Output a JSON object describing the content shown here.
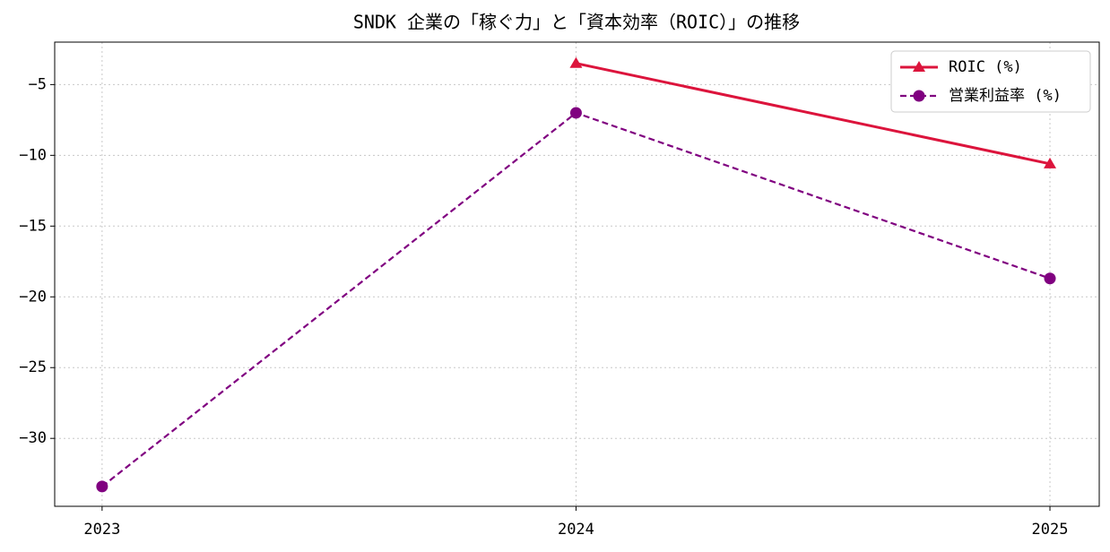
{
  "chart_data": {
    "type": "line",
    "title": "SNDK 企業の「稼ぐ力」と「資本効率（ROIC）」の推移",
    "x": [
      2023,
      2024,
      2025
    ],
    "series": [
      {
        "name": "ROIC (%)",
        "color": "#dc143c",
        "marker": "triangle",
        "linestyle": "solid",
        "values": [
          null,
          -3.5,
          -10.6
        ]
      },
      {
        "name": "営業利益率 (%)",
        "color": "#800080",
        "marker": "circle",
        "linestyle": "dashed",
        "values": [
          -33.4,
          -7.0,
          -18.7
        ]
      }
    ],
    "xlim": [
      2022.9,
      2025.104
    ],
    "xticks": [
      2023,
      2024,
      2025
    ],
    "ylim": [
      -34.8,
      -2.0
    ],
    "yticks": [
      {
        "value": -30,
        "label": "−30"
      },
      {
        "value": -25,
        "label": "−25"
      },
      {
        "value": -20,
        "label": "−20"
      },
      {
        "value": -15,
        "label": "−15"
      },
      {
        "value": -10,
        "label": "−10"
      },
      {
        "value": -5,
        "label": "−5"
      }
    ],
    "grid": true,
    "legend": "upper right"
  }
}
